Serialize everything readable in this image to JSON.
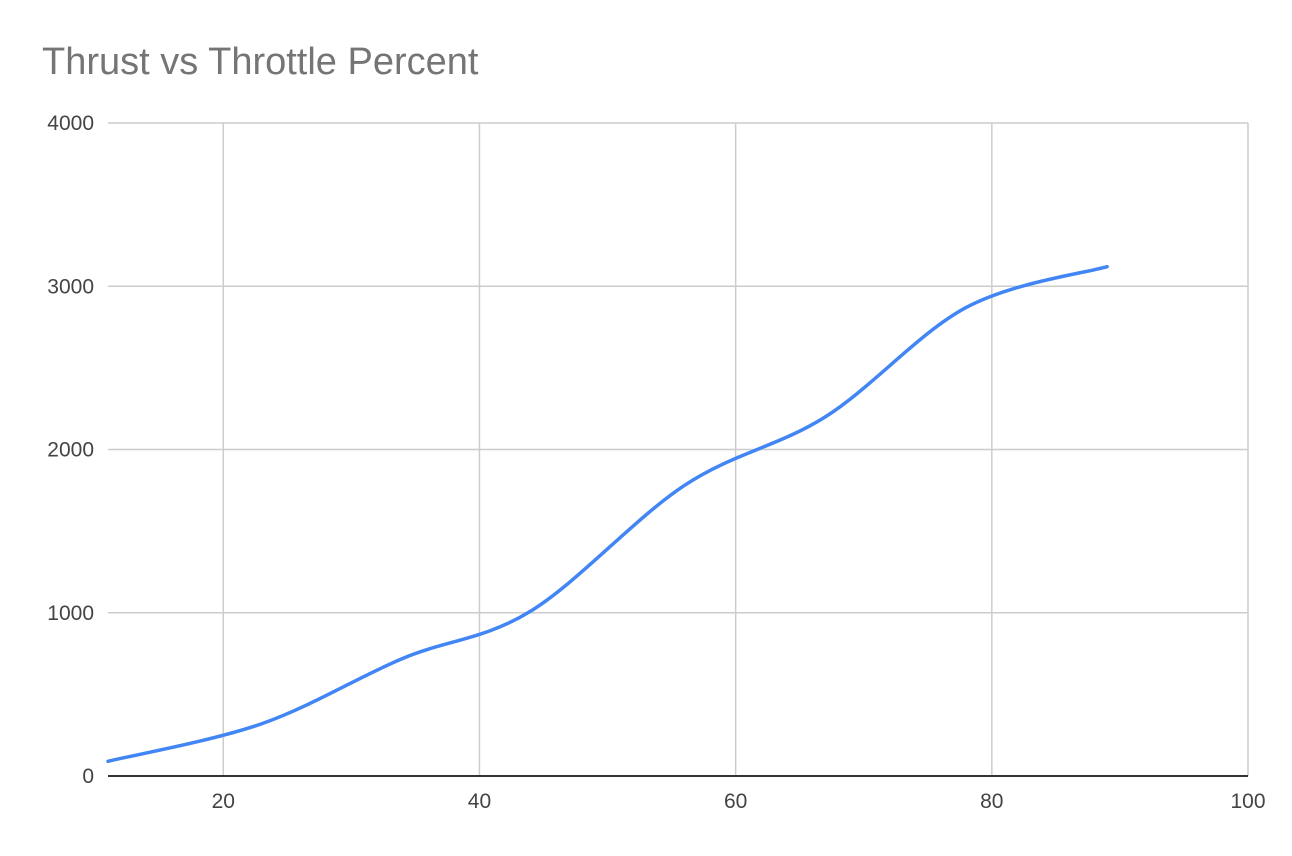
{
  "chart_data": {
    "type": "line",
    "title": "Thrust vs Throttle Percent",
    "xlabel": "",
    "ylabel": "",
    "xlim": [
      11,
      100
    ],
    "ylim": [
      0,
      4000
    ],
    "x_ticks": [
      20,
      40,
      60,
      80,
      100
    ],
    "y_ticks": [
      0,
      1000,
      2000,
      3000,
      4000
    ],
    "grid": true,
    "legend": "none",
    "line_style": "smooth",
    "series": [
      {
        "color": "#4285f4",
        "x": [
          11,
          23,
          34,
          44,
          56,
          67,
          78,
          89
        ],
        "y": [
          90,
          320,
          720,
          1010,
          1780,
          2200,
          2870,
          3120
        ]
      }
    ]
  }
}
